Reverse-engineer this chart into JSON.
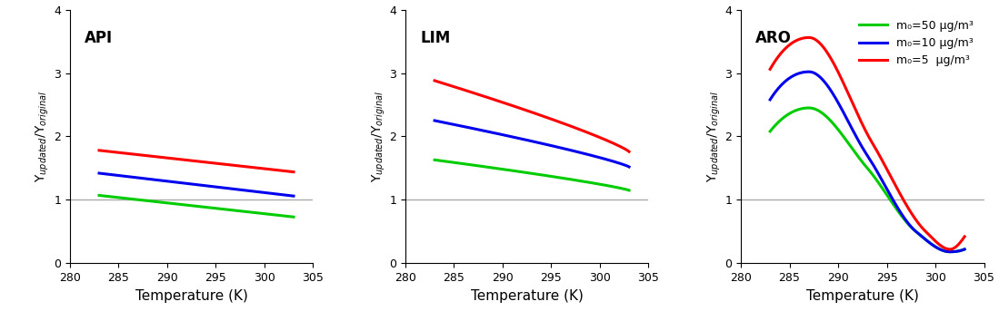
{
  "colors": {
    "green": "#00CC00",
    "blue": "#0000EE",
    "red": "#FF0000"
  },
  "legend_labels": [
    "m₀=50 μg/m³",
    "m₀=10 μg/m³",
    "m₀=5  μg/m³"
  ],
  "ylabel": "Y$_{updated}$/Y$_{original}$",
  "xlabel": "Temperature (K)",
  "panel_labels": [
    "API",
    "LIM",
    "ARO"
  ],
  "figsize": [
    10.99,
    3.54
  ],
  "dpi": 100,
  "linewidth": 2.2,
  "xlim": [
    280,
    305
  ],
  "ylim": [
    0,
    4
  ],
  "yticks": [
    0,
    1,
    2,
    3,
    4
  ],
  "xticks": [
    280,
    285,
    290,
    295,
    300,
    305
  ],
  "hline_color": "#AAAAAA",
  "hline_lw": 1.0,
  "API": {
    "T_start": 283.0,
    "T_end": 303.0,
    "green": [
      1.07,
      0.73
    ],
    "blue": [
      1.42,
      1.06
    ],
    "red": [
      1.78,
      1.44
    ]
  },
  "LIM": {
    "T_start": 283.0,
    "T_end": 303.0,
    "green": [
      1.63,
      1.15
    ],
    "blue": [
      2.25,
      1.52
    ],
    "red": [
      2.88,
      1.76
    ]
  },
  "ARO": {
    "T_start": 283.0,
    "T_end": 303.0,
    "green_pts": [
      [
        283.0,
        2.08
      ],
      [
        287.0,
        2.45
      ],
      [
        293.0,
        1.5
      ],
      [
        298.0,
        0.5
      ],
      [
        301.5,
        0.18
      ],
      [
        303.0,
        0.22
      ]
    ],
    "blue_pts": [
      [
        283.0,
        2.58
      ],
      [
        287.0,
        3.02
      ],
      [
        293.0,
        1.7
      ],
      [
        298.0,
        0.5
      ],
      [
        301.5,
        0.18
      ],
      [
        303.0,
        0.22
      ]
    ],
    "red_pts": [
      [
        283.0,
        3.06
      ],
      [
        287.0,
        3.56
      ],
      [
        293.5,
        1.9
      ],
      [
        299.0,
        0.5
      ],
      [
        301.5,
        0.22
      ],
      [
        303.0,
        0.42
      ]
    ]
  }
}
